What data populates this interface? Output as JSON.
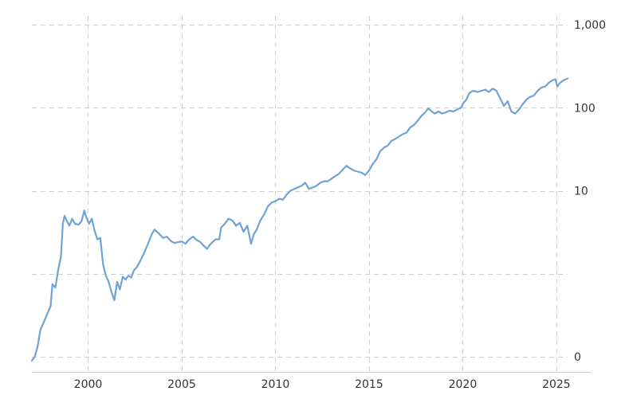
{
  "chart_data": {
    "type": "line",
    "y_scale": "log",
    "x_range": [
      1997.0,
      2025.6
    ],
    "y_range": [
      0.07,
      1000
    ],
    "grid": true,
    "grid_style": "dashed",
    "y_axis_position": "right",
    "x_ticks": [
      {
        "value": 2000,
        "label": "2000"
      },
      {
        "value": 2005,
        "label": "2005"
      },
      {
        "value": 2010,
        "label": "2010"
      },
      {
        "value": 2015,
        "label": "2015"
      },
      {
        "value": 2020,
        "label": "2020"
      },
      {
        "value": 2025,
        "label": "2025"
      }
    ],
    "x_gridlines": [
      2000,
      2005,
      2010,
      2015,
      2020,
      2025
    ],
    "y_ticks": [
      {
        "value": 1000,
        "label": "1,000"
      },
      {
        "value": 100,
        "label": "100"
      },
      {
        "value": 10,
        "label": "10"
      },
      {
        "value": 0.1,
        "label": "0"
      }
    ],
    "y_gridlines": [
      1000,
      100,
      10,
      1,
      0.1
    ],
    "series": [
      {
        "color": "#6fa3d6",
        "points": [
          [
            1997.0,
            0.09
          ],
          [
            1997.15,
            0.1
          ],
          [
            1997.3,
            0.13
          ],
          [
            1997.45,
            0.21
          ],
          [
            1997.6,
            0.25
          ],
          [
            1997.8,
            0.32
          ],
          [
            1998.0,
            0.41
          ],
          [
            1998.1,
            0.75
          ],
          [
            1998.25,
            0.68
          ],
          [
            1998.4,
            1.1
          ],
          [
            1998.55,
            1.6
          ],
          [
            1998.65,
            4.0
          ],
          [
            1998.75,
            5.0
          ],
          [
            1998.85,
            4.4
          ],
          [
            1999.0,
            3.8
          ],
          [
            1999.15,
            4.6
          ],
          [
            1999.3,
            4.0
          ],
          [
            1999.5,
            3.9
          ],
          [
            1999.65,
            4.3
          ],
          [
            1999.8,
            5.8
          ],
          [
            1999.9,
            4.8
          ],
          [
            2000.05,
            4.0
          ],
          [
            2000.2,
            4.6
          ],
          [
            2000.35,
            3.3
          ],
          [
            2000.5,
            2.6
          ],
          [
            2000.65,
            2.7
          ],
          [
            2000.8,
            1.3
          ],
          [
            2000.95,
            0.95
          ],
          [
            2001.1,
            0.8
          ],
          [
            2001.25,
            0.6
          ],
          [
            2001.4,
            0.48
          ],
          [
            2001.55,
            0.8
          ],
          [
            2001.7,
            0.65
          ],
          [
            2001.85,
            0.92
          ],
          [
            2002.0,
            0.85
          ],
          [
            2002.15,
            0.95
          ],
          [
            2002.3,
            0.9
          ],
          [
            2002.45,
            1.1
          ],
          [
            2002.6,
            1.2
          ],
          [
            2002.8,
            1.45
          ],
          [
            2003.0,
            1.8
          ],
          [
            2003.2,
            2.3
          ],
          [
            2003.4,
            3.0
          ],
          [
            2003.55,
            3.4
          ],
          [
            2003.75,
            3.1
          ],
          [
            2004.0,
            2.7
          ],
          [
            2004.2,
            2.8
          ],
          [
            2004.4,
            2.5
          ],
          [
            2004.6,
            2.35
          ],
          [
            2004.8,
            2.4
          ],
          [
            2005.0,
            2.45
          ],
          [
            2005.2,
            2.3
          ],
          [
            2005.4,
            2.6
          ],
          [
            2005.6,
            2.8
          ],
          [
            2005.8,
            2.55
          ],
          [
            2006.0,
            2.4
          ],
          [
            2006.15,
            2.2
          ],
          [
            2006.35,
            2.0
          ],
          [
            2006.55,
            2.3
          ],
          [
            2006.8,
            2.6
          ],
          [
            2007.0,
            2.6
          ],
          [
            2007.1,
            3.6
          ],
          [
            2007.3,
            4.0
          ],
          [
            2007.5,
            4.6
          ],
          [
            2007.7,
            4.4
          ],
          [
            2007.9,
            3.8
          ],
          [
            2008.1,
            4.1
          ],
          [
            2008.3,
            3.2
          ],
          [
            2008.5,
            3.8
          ],
          [
            2008.7,
            2.3
          ],
          [
            2008.85,
            3.0
          ],
          [
            2009.0,
            3.4
          ],
          [
            2009.2,
            4.4
          ],
          [
            2009.4,
            5.2
          ],
          [
            2009.6,
            6.5
          ],
          [
            2009.8,
            7.2
          ],
          [
            2010.0,
            7.5
          ],
          [
            2010.2,
            8.0
          ],
          [
            2010.4,
            7.8
          ],
          [
            2010.6,
            9.0
          ],
          [
            2010.8,
            10.0
          ],
          [
            2011.0,
            10.5
          ],
          [
            2011.2,
            11.0
          ],
          [
            2011.4,
            11.5
          ],
          [
            2011.6,
            12.5
          ],
          [
            2011.8,
            10.5
          ],
          [
            2012.0,
            11.0
          ],
          [
            2012.2,
            11.5
          ],
          [
            2012.4,
            12.5
          ],
          [
            2012.6,
            13.0
          ],
          [
            2012.8,
            13.0
          ],
          [
            2013.0,
            14.0
          ],
          [
            2013.2,
            15.0
          ],
          [
            2013.4,
            16.0
          ],
          [
            2013.6,
            18.0
          ],
          [
            2013.8,
            20.0
          ],
          [
            2014.0,
            18.5
          ],
          [
            2014.2,
            17.5
          ],
          [
            2014.4,
            17.0
          ],
          [
            2014.6,
            16.5
          ],
          [
            2014.8,
            15.5
          ],
          [
            2015.0,
            17.5
          ],
          [
            2015.2,
            21.0
          ],
          [
            2015.4,
            24.0
          ],
          [
            2015.6,
            30.0
          ],
          [
            2015.8,
            33.0
          ],
          [
            2016.0,
            35.0
          ],
          [
            2016.2,
            40.0
          ],
          [
            2016.4,
            42.0
          ],
          [
            2016.6,
            45.0
          ],
          [
            2016.8,
            48.0
          ],
          [
            2017.0,
            50.0
          ],
          [
            2017.2,
            58.0
          ],
          [
            2017.4,
            62.0
          ],
          [
            2017.6,
            70.0
          ],
          [
            2017.8,
            80.0
          ],
          [
            2018.0,
            88.0
          ],
          [
            2018.15,
            98.0
          ],
          [
            2018.3,
            92.0
          ],
          [
            2018.5,
            85.0
          ],
          [
            2018.7,
            90.0
          ],
          [
            2018.9,
            85.0
          ],
          [
            2019.1,
            88.0
          ],
          [
            2019.3,
            92.0
          ],
          [
            2019.5,
            90.0
          ],
          [
            2019.7,
            95.0
          ],
          [
            2019.9,
            100.0
          ],
          [
            2020.05,
            115.0
          ],
          [
            2020.2,
            125.0
          ],
          [
            2020.35,
            150.0
          ],
          [
            2020.55,
            160.0
          ],
          [
            2020.8,
            155.0
          ],
          [
            2021.0,
            160.0
          ],
          [
            2021.2,
            165.0
          ],
          [
            2021.4,
            155.0
          ],
          [
            2021.6,
            170.0
          ],
          [
            2021.8,
            160.0
          ],
          [
            2022.0,
            130.0
          ],
          [
            2022.2,
            105.0
          ],
          [
            2022.4,
            120.0
          ],
          [
            2022.6,
            90.0
          ],
          [
            2022.8,
            85.0
          ],
          [
            2023.0,
            95.0
          ],
          [
            2023.2,
            110.0
          ],
          [
            2023.4,
            125.0
          ],
          [
            2023.6,
            135.0
          ],
          [
            2023.8,
            140.0
          ],
          [
            2024.0,
            160.0
          ],
          [
            2024.2,
            175.0
          ],
          [
            2024.4,
            180.0
          ],
          [
            2024.6,
            200.0
          ],
          [
            2024.8,
            215.0
          ],
          [
            2024.95,
            220.0
          ],
          [
            2025.05,
            180.0
          ],
          [
            2025.2,
            200.0
          ],
          [
            2025.4,
            215.0
          ],
          [
            2025.6,
            225.0
          ]
        ]
      }
    ]
  }
}
